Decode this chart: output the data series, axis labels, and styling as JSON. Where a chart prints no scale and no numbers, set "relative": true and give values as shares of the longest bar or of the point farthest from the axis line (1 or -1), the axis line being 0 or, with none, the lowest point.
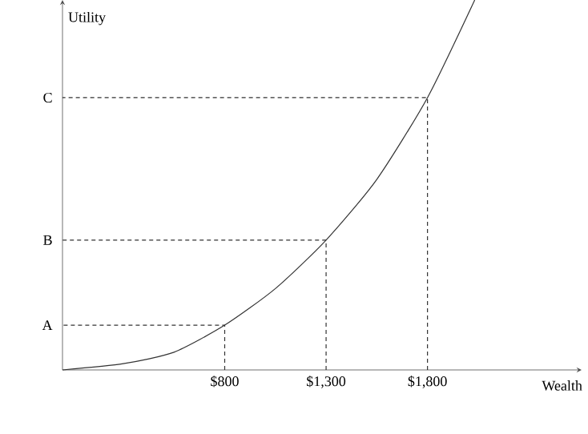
{
  "chart_data": {
    "type": "line",
    "xlabel": "Wealth",
    "ylabel": "Utility",
    "relative": true,
    "xlim": [
      0,
      2560
    ],
    "xticks": [
      {
        "value": 800,
        "label": "$800"
      },
      {
        "value": 1300,
        "label": "$1,300"
      },
      {
        "value": 1800,
        "label": "$1,800"
      }
    ],
    "series": [
      {
        "color": "#333333",
        "line_style": "solid",
        "x": [
          0,
          300,
          550,
          800,
          1050,
          1300,
          1550,
          1800,
          2033
        ],
        "values": [
          0,
          0.017,
          0.048,
          0.121,
          0.22,
          0.351,
          0.515,
          0.736,
          1
        ]
      },
      {
        "name": "A",
        "color": "#333333",
        "line_style": "dashed",
        "x": [
          800,
          800,
          0
        ],
        "values": [
          0,
          0.121,
          0.121
        ]
      },
      {
        "name": "B",
        "color": "#333333",
        "line_style": "dashed",
        "x": [
          1300,
          1300,
          0
        ],
        "values": [
          0,
          0.351,
          0.351
        ]
      },
      {
        "name": "C",
        "color": "#333333",
        "line_style": "dashed",
        "x": [
          1800,
          1800,
          0
        ],
        "values": [
          0,
          0.736,
          0.736
        ]
      }
    ]
  }
}
